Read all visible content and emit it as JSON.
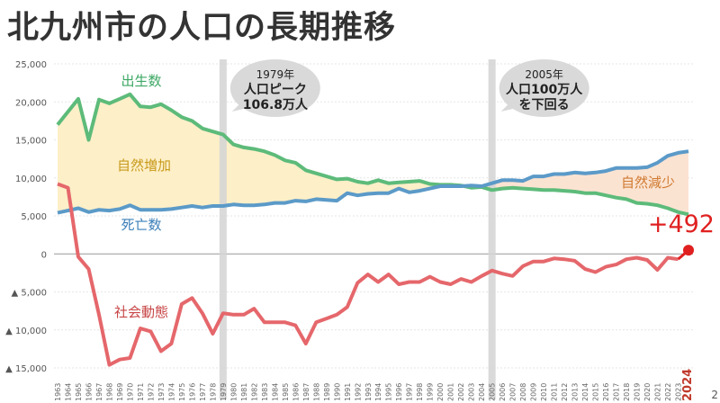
{
  "page_title": "北九州市の人口の長期推移",
  "page_number": "2",
  "chart_data": {
    "type": "line",
    "title": "北九州市の人口の長期推移",
    "ylim": [
      -15000,
      25000
    ],
    "yticks": [
      {
        "v": 25000,
        "label": "25,000"
      },
      {
        "v": 20000,
        "label": "20,000"
      },
      {
        "v": 15000,
        "label": "15,000"
      },
      {
        "v": 10000,
        "label": "10,000"
      },
      {
        "v": 5000,
        "label": "5,000"
      },
      {
        "v": 0,
        "label": "0"
      },
      {
        "v": -5000,
        "label": "▲ 5,000"
      },
      {
        "v": -10000,
        "label": "▲ 10,000"
      },
      {
        "v": -15000,
        "label": "▲ 15,000"
      }
    ],
    "x": [
      1963,
      1964,
      1965,
      1966,
      1967,
      1968,
      1969,
      1970,
      1971,
      1972,
      1973,
      1974,
      1975,
      1976,
      1977,
      1978,
      1979,
      1980,
      1981,
      1982,
      1983,
      1984,
      1985,
      1986,
      1987,
      1988,
      1989,
      1990,
      1991,
      1992,
      1993,
      1994,
      1995,
      1996,
      1997,
      1998,
      1999,
      2000,
      2001,
      2002,
      2003,
      2004,
      2005,
      2006,
      2007,
      2008,
      2009,
      2010,
      2011,
      2012,
      2013,
      2014,
      2015,
      2016,
      2017,
      2018,
      2019,
      2020,
      2021,
      2022,
      2023,
      2024
    ],
    "series": [
      {
        "name": "出生数",
        "color": "#5dbb7a",
        "values": [
          17000,
          18700,
          20400,
          15000,
          20300,
          19800,
          20400,
          21000,
          19400,
          19300,
          19700,
          18900,
          18000,
          17500,
          16500,
          16100,
          15700,
          14400,
          14000,
          13800,
          13500,
          13000,
          12300,
          12000,
          11000,
          10600,
          10200,
          9800,
          9900,
          9500,
          9300,
          9700,
          9300,
          9400,
          9500,
          9600,
          9200,
          9100,
          9100,
          9000,
          8700,
          8800,
          8400,
          8600,
          8700,
          8600,
          8500,
          8400,
          8400,
          8300,
          8200,
          8000,
          8000,
          7700,
          7400,
          7200,
          6700,
          6600,
          6400,
          6000,
          5500,
          5200
        ]
      },
      {
        "name": "死亡数",
        "color": "#5b9ac8",
        "values": [
          5400,
          5700,
          6000,
          5500,
          5800,
          5700,
          5900,
          6400,
          5800,
          5800,
          5800,
          5900,
          6100,
          6300,
          6100,
          6300,
          6300,
          6500,
          6400,
          6400,
          6500,
          6700,
          6700,
          7000,
          6900,
          7200,
          7100,
          7000,
          8000,
          7700,
          7900,
          8000,
          8000,
          8600,
          8100,
          8300,
          8600,
          8900,
          8900,
          8900,
          9000,
          8900,
          9300,
          9700,
          9700,
          9600,
          10200,
          10200,
          10500,
          10500,
          10700,
          10600,
          10700,
          10900,
          11300,
          11300,
          11300,
          11400,
          12000,
          12900,
          13300,
          13500
        ]
      },
      {
        "name": "社会動態",
        "color": "#e5676b",
        "values": [
          9200,
          8700,
          -400,
          -2000,
          -8000,
          -14600,
          -13900,
          -13700,
          -9800,
          -10200,
          -12800,
          -11800,
          -6600,
          -5800,
          -7800,
          -10500,
          -7800,
          -8000,
          -8000,
          -7200,
          -9000,
          -9000,
          -9000,
          -9400,
          -11800,
          -9000,
          -8500,
          -8000,
          -7000,
          -3800,
          -2700,
          -3700,
          -2700,
          -4000,
          -3700,
          -3700,
          -3000,
          -3700,
          -4000,
          -3300,
          -3700,
          -2900,
          -2200,
          -2600,
          -2900,
          -1600,
          -1000,
          -1000,
          -600,
          -700,
          -900,
          -2000,
          -2400,
          -1700,
          -1400,
          -700,
          -500,
          -800,
          -2100,
          -500,
          -700,
          492
        ]
      }
    ],
    "area_labels": {
      "increase": "自然増加",
      "decrease": "自然減少"
    },
    "area_colors": {
      "increase": "#fdefc8",
      "decrease": "#fbe3d2"
    },
    "highlight_label": "+492",
    "highlight_color": "#e02020",
    "annotations": [
      {
        "year": 1979,
        "lines": [
          "1979年",
          "人口ピーク",
          "106.8万人"
        ]
      },
      {
        "year": 2005,
        "lines": [
          "2005年",
          "人口100万人",
          "を下回る"
        ]
      }
    ],
    "grid": true
  }
}
